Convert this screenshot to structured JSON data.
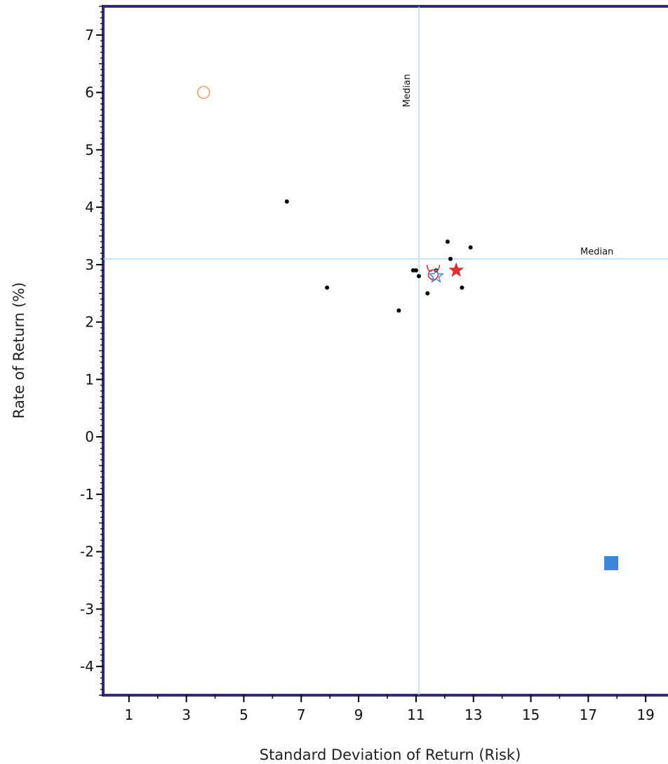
{
  "chart_data": {
    "type": "scatter",
    "xlabel": "Standard Deviation of Return (Risk)",
    "ylabel": "Rate of Return (%)",
    "xlim": [
      0.1,
      19.9
    ],
    "ylim": [
      -4.5,
      7.5
    ],
    "x_ticks": [
      "1",
      "3",
      "5",
      "7",
      "9",
      "11",
      "13",
      "15",
      "17",
      "19"
    ],
    "y_ticks": [
      "7",
      "6",
      "5",
      "4",
      "3",
      "2",
      "1",
      "0",
      "-1",
      "-2",
      "-3",
      "-4"
    ],
    "medians": {
      "x": 11.1,
      "y": 3.1,
      "x_label": "Median",
      "y_label": "Median"
    },
    "colors": {
      "frame": "#2e2a86",
      "median_line": "#a8d4ee",
      "dot": "#000000",
      "red_marker": "#e03030",
      "blue_marker": "#3b86d8",
      "orange_marker": "#f0a070"
    },
    "points": [
      {
        "x": 6.5,
        "y": 4.1
      },
      {
        "x": 7.9,
        "y": 2.6
      },
      {
        "x": 10.4,
        "y": 2.2
      },
      {
        "x": 10.9,
        "y": 2.9
      },
      {
        "x": 11.0,
        "y": 2.9
      },
      {
        "x": 11.1,
        "y": 2.8
      },
      {
        "x": 11.4,
        "y": 2.5
      },
      {
        "x": 11.7,
        "y": 2.9
      },
      {
        "x": 12.1,
        "y": 3.4
      },
      {
        "x": 12.2,
        "y": 3.1
      },
      {
        "x": 12.6,
        "y": 2.6
      },
      {
        "x": 12.9,
        "y": 3.3
      }
    ],
    "special_markers": [
      {
        "shape": "open-circle",
        "color": "orange",
        "x": 3.6,
        "y": 6.0
      },
      {
        "shape": "horned-circle",
        "color": "red",
        "x": 11.6,
        "y": 2.85
      },
      {
        "shape": "open-star",
        "color": "blue",
        "x": 11.7,
        "y": 2.8
      },
      {
        "shape": "filled-star",
        "color": "red",
        "x": 12.4,
        "y": 2.9
      },
      {
        "shape": "filled-square",
        "color": "blue",
        "x": 17.8,
        "y": -2.2
      }
    ]
  }
}
